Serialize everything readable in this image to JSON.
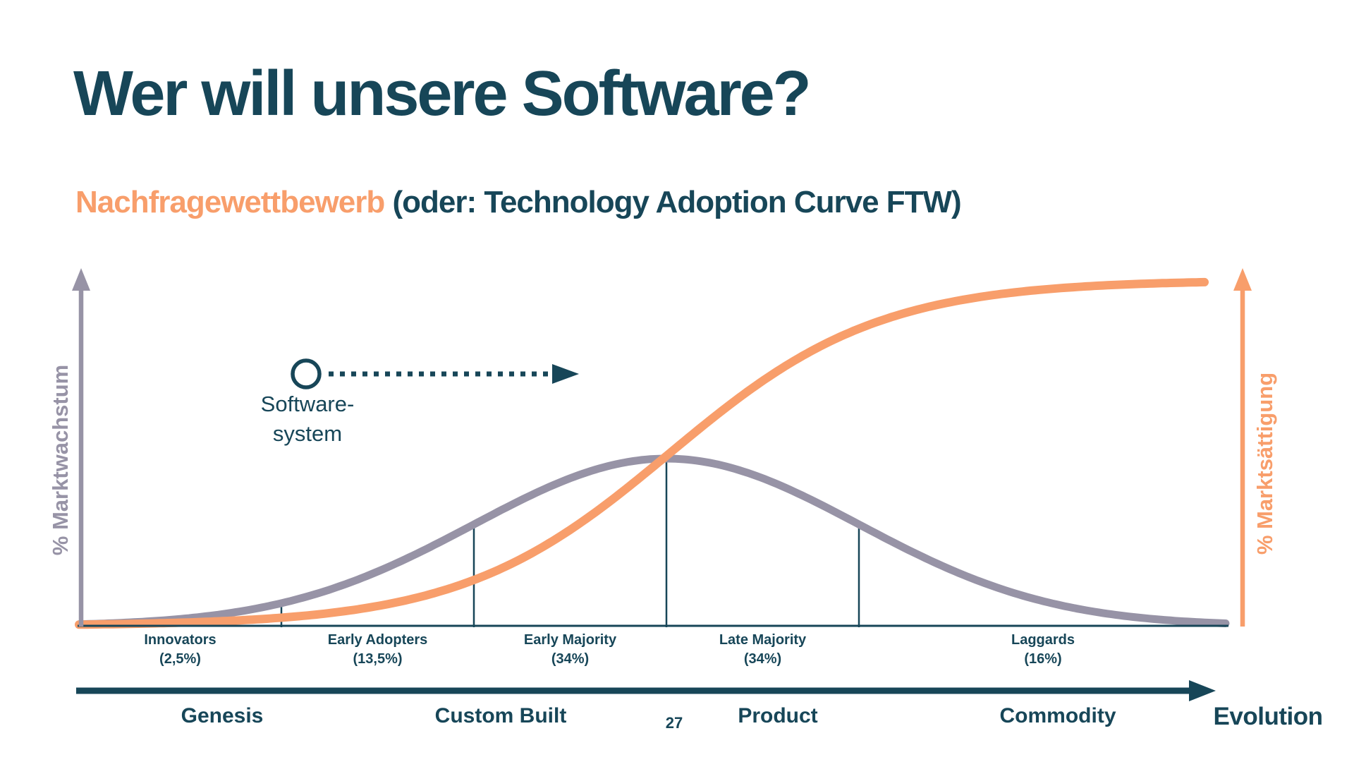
{
  "page": {
    "title": "Wer will unsere Software?",
    "subtitle_highlight": "Nachfragewettbewerb",
    "subtitle_rest": " (oder: Technology Adoption Curve FTW)",
    "page_number": "27"
  },
  "colors": {
    "dark_teal": "#174658",
    "orange": "#F89E6B",
    "gray_purple": "#9793A6",
    "background": "#FFFFFF"
  },
  "chart_data": {
    "type": "line",
    "title": "Technology Adoption Curve",
    "x_axis": {
      "label": "Evolution",
      "stages": [
        "Genesis",
        "Custom Built",
        "Product",
        "Commodity"
      ]
    },
    "y_axis_left": {
      "label": "% Marktwachstum",
      "color": "#9793A6"
    },
    "y_axis_right": {
      "label": "% Marktsättigung",
      "color": "#F89E6B"
    },
    "series": [
      {
        "name": "% Marktwachstum",
        "shape": "bell",
        "color": "#9793A6",
        "description": "normal distribution over adoption segments, peak at the Early Majority / Late Majority boundary"
      },
      {
        "name": "% Marktsättigung",
        "shape": "s-curve",
        "color": "#F89E6B",
        "description": "logistic saturation curve crossing the bell curve at its peak and flattening at the top right"
      }
    ],
    "adoption_segments": [
      {
        "label": "Innovators",
        "value": 2.5,
        "display_value": "(2,5%)"
      },
      {
        "label": "Early Adopters",
        "value": 13.5,
        "display_value": "(13,5%)"
      },
      {
        "label": "Early Majority",
        "value": 34,
        "display_value": "(34%)"
      },
      {
        "label": "Late Majority",
        "value": 34,
        "display_value": "(34%)"
      },
      {
        "label": "Laggards",
        "value": 16,
        "display_value": "(16%)"
      }
    ],
    "annotation": {
      "line1": "Software-",
      "line2": "system",
      "marker": "circle-with-dotted-arrow-right"
    },
    "grid": false,
    "legend": false
  }
}
